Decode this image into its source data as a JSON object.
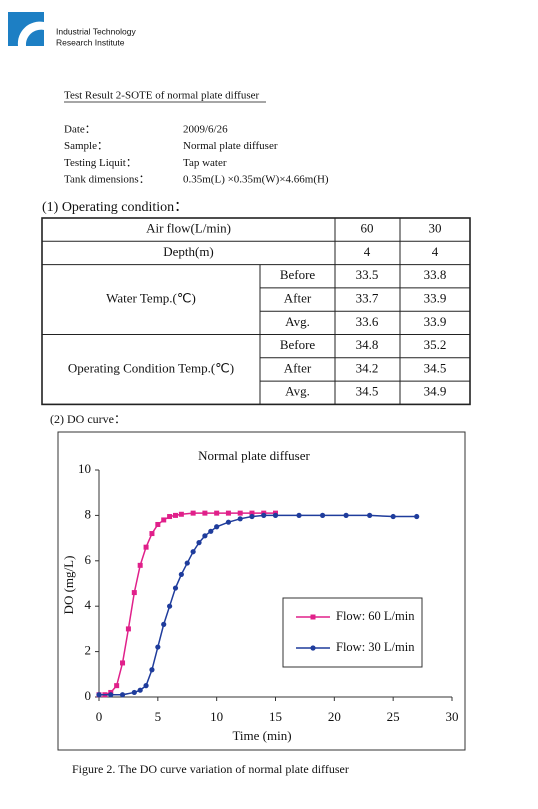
{
  "header": {
    "org_line1": "Industrial Technology",
    "org_line2": "Research Institute"
  },
  "title": "Test Result 2-SOTE of normal plate diffuser",
  "info": [
    {
      "label": "Date：",
      "value": "2009/6/26"
    },
    {
      "label": "Sample：",
      "value": "Normal plate diffuser"
    },
    {
      "label": "Testing Liquit：",
      "value": "Tap water"
    },
    {
      "label": "Tank dimensions：",
      "value": "0.35m(L) ×0.35m(W)×4.66m(H)"
    }
  ],
  "section1": "(1) Operating condition：",
  "table": {
    "airflow": {
      "label": "Air flow(L/min)",
      "values": [
        60,
        30
      ]
    },
    "depth": {
      "label": "Depth(m)",
      "values": [
        4,
        4
      ]
    },
    "groups": [
      {
        "label": "Water Temp.(℃)",
        "rows": [
          {
            "label": "Before",
            "values": [
              33.5,
              33.8
            ]
          },
          {
            "label": "After",
            "values": [
              33.7,
              33.9
            ]
          },
          {
            "label": "Avg.",
            "values": [
              33.6,
              33.9
            ]
          }
        ]
      },
      {
        "label": "Operating Condition Temp.(℃)",
        "rows": [
          {
            "label": "Before",
            "values": [
              34.8,
              35.2
            ]
          },
          {
            "label": "After",
            "values": [
              34.2,
              34.5
            ]
          },
          {
            "label": "Avg.",
            "values": [
              34.5,
              34.9
            ]
          }
        ]
      }
    ]
  },
  "section2": "(2) DO curve：",
  "chart_data": {
    "type": "line",
    "title": "Normal plate diffuser",
    "x_label": "Time (min)",
    "y_label": "DO (mg/L)",
    "xlim": [
      0,
      30
    ],
    "ylim": [
      0,
      10
    ],
    "xticks": [
      0,
      5,
      10,
      15,
      20,
      25,
      30
    ],
    "yticks": [
      0,
      2,
      4,
      6,
      8,
      10
    ],
    "grid": false,
    "series": [
      {
        "name": "Flow: 60 L/min",
        "color": "#e0208a",
        "marker": "square",
        "x": [
          0,
          0.5,
          1,
          1.5,
          2,
          2.5,
          3,
          3.5,
          4,
          4.5,
          5,
          5.5,
          6,
          6.5,
          7,
          8,
          9,
          10,
          11,
          12,
          13,
          14,
          15
        ],
        "values": [
          0.1,
          0.1,
          0.2,
          0.5,
          1.5,
          3.0,
          4.6,
          5.8,
          6.6,
          7.2,
          7.6,
          7.8,
          7.95,
          8.0,
          8.05,
          8.1,
          8.1,
          8.1,
          8.1,
          8.1,
          8.1,
          8.1,
          8.1
        ]
      },
      {
        "name": "Flow: 30 L/min",
        "color": "#1f3c9c",
        "marker": "circle",
        "x": [
          0,
          1,
          2,
          3,
          3.5,
          4,
          4.5,
          5,
          5.5,
          6,
          6.5,
          7,
          7.5,
          8,
          8.5,
          9,
          9.5,
          10,
          11,
          12,
          13,
          14,
          15,
          17,
          19,
          21,
          23,
          25,
          27
        ],
        "values": [
          0.1,
          0.1,
          0.1,
          0.2,
          0.3,
          0.5,
          1.2,
          2.2,
          3.2,
          4.0,
          4.8,
          5.4,
          5.9,
          6.4,
          6.8,
          7.1,
          7.3,
          7.5,
          7.7,
          7.85,
          7.95,
          8.0,
          8.0,
          8.0,
          8.0,
          8.0,
          8.0,
          7.95,
          7.95
        ]
      }
    ]
  },
  "caption": "Figure 2. The DO curve variation of normal plate diffuser"
}
